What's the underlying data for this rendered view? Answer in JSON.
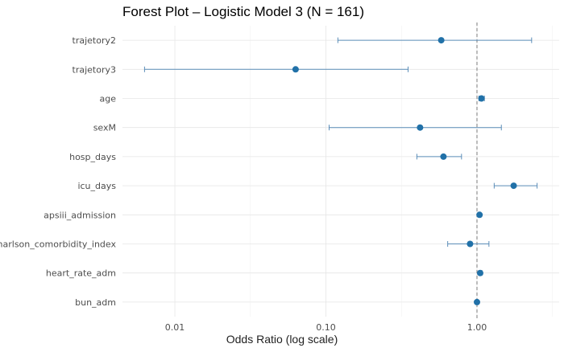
{
  "chart_data": {
    "type": "forest",
    "title": "Forest Plot – Logistic Model 3 (N = 161)",
    "xlabel": "Odds Ratio (log scale)",
    "ylabel": "",
    "x_scale": "log10",
    "xlim": [
      0.0045,
      3.5
    ],
    "x_ticks": [
      0.01,
      0.1,
      1.0
    ],
    "x_tick_labels": [
      "0.01",
      "0.10",
      "1.00"
    ],
    "reference_line": 1.0,
    "grid": true,
    "point_color": "#2171a8",
    "ci_color": "#5b8db8",
    "ref_line_color": "#888888",
    "rows": [
      {
        "term": "trajetory2",
        "or": 0.58,
        "lo": 0.12,
        "hi": 2.3
      },
      {
        "term": "trajetory3",
        "or": 0.063,
        "lo": 0.0063,
        "hi": 0.35
      },
      {
        "term": "age",
        "or": 1.07,
        "lo": 1.03,
        "hi": 1.12
      },
      {
        "term": "sexM",
        "or": 0.42,
        "lo": 0.105,
        "hi": 1.45
      },
      {
        "term": "hosp_days",
        "or": 0.6,
        "lo": 0.4,
        "hi": 0.79
      },
      {
        "term": "icu_days",
        "or": 1.75,
        "lo": 1.3,
        "hi": 2.5
      },
      {
        "term": "apsiii_admission",
        "or": 1.04,
        "lo": 1.02,
        "hi": 1.06
      },
      {
        "term": "charlson_comorbidity_index",
        "or": 0.9,
        "lo": 0.64,
        "hi": 1.2
      },
      {
        "term": "heart_rate_adm",
        "or": 1.05,
        "lo": 1.03,
        "hi": 1.08
      },
      {
        "term": "bun_adm",
        "or": 1.0,
        "lo": 0.99,
        "hi": 1.01
      }
    ]
  }
}
